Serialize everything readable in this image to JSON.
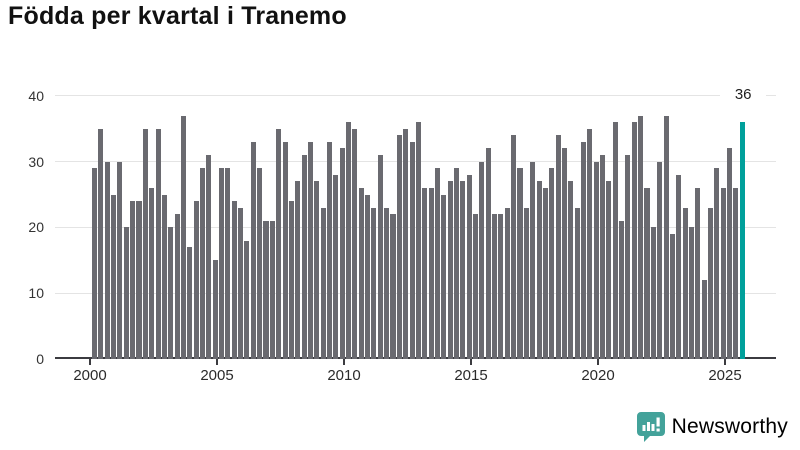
{
  "title": "Födda per kvartal i Tranemo",
  "chart_data": {
    "type": "bar",
    "x_unit": "quarter",
    "start_quarter": "2000 Q1",
    "end_quarter": "2025 Q3",
    "x_tick_labels": [
      "2000",
      "2005",
      "2010",
      "2015",
      "2020",
      "2025"
    ],
    "y_tick_labels": [
      "0",
      "10",
      "20",
      "30",
      "40"
    ],
    "ylim": [
      0,
      40
    ],
    "grid": true,
    "values": [
      29,
      35,
      30,
      25,
      30,
      20,
      24,
      24,
      35,
      26,
      35,
      25,
      20,
      22,
      37,
      17,
      24,
      29,
      31,
      15,
      29,
      29,
      24,
      23,
      18,
      33,
      29,
      21,
      21,
      35,
      33,
      24,
      27,
      31,
      33,
      27,
      23,
      33,
      28,
      32,
      36,
      35,
      26,
      25,
      23,
      31,
      23,
      22,
      34,
      35,
      33,
      36,
      26,
      26,
      29,
      25,
      27,
      29,
      27,
      28,
      22,
      30,
      32,
      22,
      22,
      23,
      34,
      29,
      23,
      30,
      27,
      26,
      29,
      34,
      32,
      27,
      23,
      33,
      35,
      30,
      31,
      27,
      36,
      21,
      31,
      36,
      37,
      26,
      20,
      30,
      37,
      19,
      28,
      23,
      20,
      26,
      12,
      23,
      29,
      26,
      32,
      26,
      36
    ],
    "highlight": {
      "index": 102,
      "quarter": "2025 Q3",
      "value": 36,
      "label": "36"
    },
    "colors": {
      "bar": "#6a6a70",
      "highlight": "#00a09b",
      "grid": "#e4e4e4",
      "axis": "#3b3b40"
    }
  },
  "annotation_label": "36",
  "branding": {
    "logo_text": "Newsworthy",
    "color": "#43a29a",
    "icon": "bar-chart-speech-bubble-icon"
  }
}
